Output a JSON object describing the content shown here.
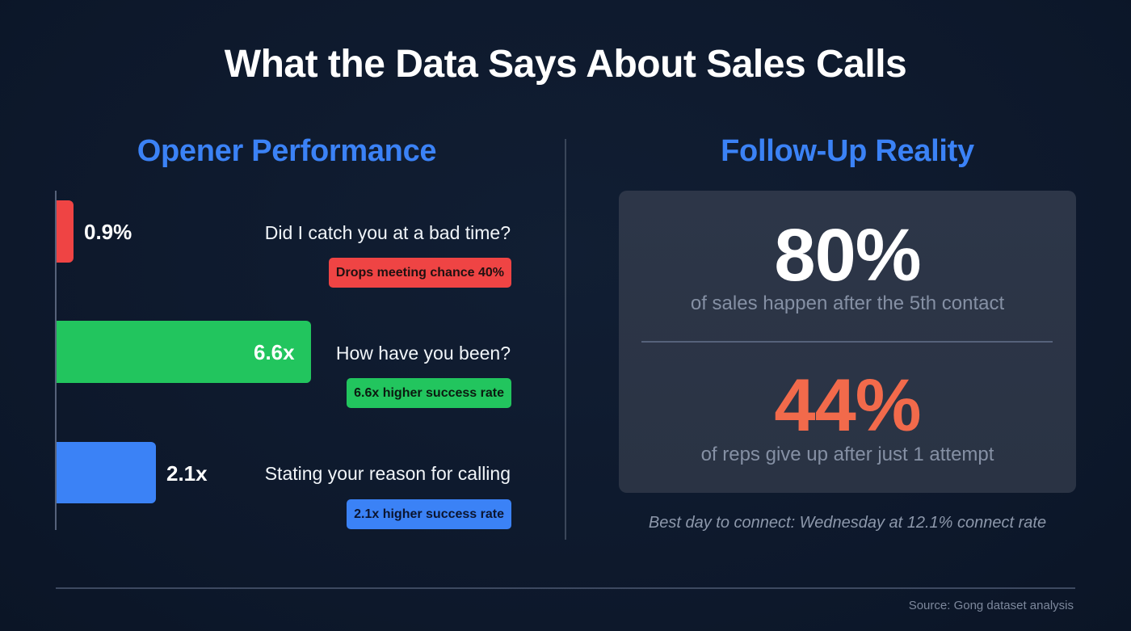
{
  "title": "What the Data Says About Sales Calls",
  "left_panel": {
    "heading": "Opener Performance",
    "openers": [
      {
        "value_label": "0.9%",
        "text": "Did I catch you at a bad time?",
        "badge": "Drops meeting chance 40%",
        "color": "#ef4444"
      },
      {
        "value_label": "6.6x",
        "text": "How have you been?",
        "badge": "6.6x higher success rate",
        "color": "#22c55e"
      },
      {
        "value_label": "2.1x",
        "text": "Stating your reason for calling",
        "badge": "2.1x higher success rate",
        "color": "#3b82f6"
      }
    ]
  },
  "right_panel": {
    "heading": "Follow-Up Reality",
    "stats": [
      {
        "value": "80%",
        "description": "of sales happen after the 5th contact",
        "color": "#ffffff"
      },
      {
        "value": "44%",
        "description": "of reps give up after just 1 attempt",
        "color": "#f26a4b"
      }
    ],
    "footnote": "Best day to connect: Wednesday at 12.1% connect rate"
  },
  "source": "Source: Gong dataset analysis",
  "colors": {
    "background": "#0e1a2e",
    "heading_accent": "#3b82f6",
    "card": "#2d3648"
  },
  "chart_data": [
    {
      "type": "bar",
      "orientation": "horizontal",
      "title": "Opener Performance",
      "categories": [
        "Did I catch you at a bad time?",
        "How have you been?",
        "Stating your reason for calling"
      ],
      "values": [
        0.9,
        6.6,
        2.1
      ],
      "value_labels": [
        "0.9%",
        "6.6x",
        "2.1x"
      ],
      "colors": [
        "#ef4444",
        "#22c55e",
        "#3b82f6"
      ],
      "annotations": [
        "Drops meeting chance 40%",
        "6.6x higher success rate",
        "2.1x higher success rate"
      ],
      "xlabel": "",
      "ylabel": "",
      "grid": false,
      "legend": "none"
    },
    {
      "type": "table",
      "title": "Follow-Up Reality",
      "rows": [
        {
          "value": 80,
          "unit": "%",
          "label": "of sales happen after the 5th contact"
        },
        {
          "value": 44,
          "unit": "%",
          "label": "of reps give up after just 1 attempt"
        }
      ],
      "annotation": "Best day to connect: Wednesday at 12.1% connect rate"
    }
  ]
}
